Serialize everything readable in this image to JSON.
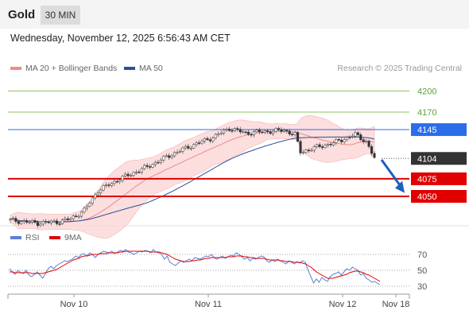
{
  "header": {
    "title": "Gold",
    "interval": "30 MIN"
  },
  "timestamp": "Wednesday, November 12, 2025 6:56:43 AM CET",
  "legend": [
    {
      "label": "MA 20 + Bollinger Bands",
      "color": "#f08a8a"
    },
    {
      "label": "MA 50",
      "color": "#2a4f9a"
    }
  ],
  "credit": "Research © 2025 Trading Central",
  "rsi_legend": [
    {
      "label": "RSI",
      "color": "#5a7fd6"
    },
    {
      "label": "9MA",
      "color": "#e00000"
    }
  ],
  "chart_data": {
    "type": "candlestick",
    "price_axis": {
      "min": 4007,
      "max": 4222
    },
    "levels": [
      {
        "value": 4200,
        "label": "4200",
        "kind": "target",
        "color": "#8cc464"
      },
      {
        "value": 4170,
        "label": "4170",
        "kind": "target",
        "color": "#8cc464"
      },
      {
        "value": 4145,
        "label": "4145",
        "kind": "pivot",
        "color": "#2a6dea"
      },
      {
        "value": 4104,
        "label": "4104",
        "kind": "last",
        "color": "#333333"
      },
      {
        "value": 4075,
        "label": "4075",
        "kind": "support",
        "color": "#e00000"
      },
      {
        "value": 4050,
        "label": "4050",
        "kind": "support",
        "color": "#e00000"
      }
    ],
    "x_labels": [
      "Nov 10",
      "Nov 11",
      "Nov 12",
      "Nov 18"
    ],
    "rsi": {
      "axis": {
        "min": 22,
        "max": 78
      },
      "ticks": [
        70,
        50,
        30
      ],
      "rsi_values": [
        52,
        48,
        45,
        50,
        47,
        46,
        50,
        44,
        42,
        45,
        48,
        44,
        40,
        46,
        52,
        55,
        52,
        56,
        58,
        60,
        62,
        61,
        63,
        65,
        68,
        66,
        70,
        71,
        68,
        72,
        70,
        66,
        70,
        72,
        74,
        73,
        72,
        74,
        71,
        73,
        75,
        74,
        76,
        73,
        72,
        70,
        72,
        74,
        73,
        75,
        74,
        72,
        76,
        73,
        72,
        70,
        64,
        68,
        60,
        58,
        56,
        59,
        62,
        60,
        62,
        64,
        62,
        66,
        65,
        64,
        66,
        68,
        67,
        70,
        66,
        64,
        66,
        68,
        65,
        67,
        69,
        68,
        72,
        70,
        67,
        64,
        66,
        62,
        65,
        64,
        66,
        68,
        67,
        62,
        60,
        63,
        61,
        64,
        62,
        60,
        58,
        62,
        60,
        58,
        61,
        59,
        62,
        60,
        50,
        42,
        34,
        39,
        35,
        41,
        38,
        36,
        42,
        45,
        46,
        48,
        44,
        48,
        52,
        50,
        54,
        52,
        50,
        44,
        46,
        40,
        38,
        35,
        36,
        34,
        32
      ],
      "ma9_values": [
        48,
        48,
        47,
        47,
        47,
        47,
        47,
        47,
        46,
        46,
        46,
        46,
        46,
        47,
        48,
        49,
        50,
        51,
        53,
        55,
        57,
        59,
        61,
        63,
        64,
        65,
        67,
        68,
        68,
        69,
        70,
        70,
        70,
        71,
        71,
        71,
        72,
        72,
        72,
        72,
        73,
        73,
        74,
        74,
        74,
        74,
        74,
        74,
        74,
        74,
        74,
        73,
        73,
        73,
        73,
        72,
        71,
        70,
        68,
        66,
        64,
        63,
        62,
        61,
        61,
        61,
        62,
        62,
        63,
        63,
        64,
        65,
        65,
        66,
        66,
        66,
        66,
        66,
        66,
        67,
        67,
        67,
        68,
        68,
        68,
        67,
        67,
        66,
        66,
        65,
        65,
        65,
        65,
        64,
        63,
        63,
        63,
        63,
        62,
        62,
        61,
        61,
        61,
        60,
        60,
        60,
        59,
        58,
        56,
        54,
        51,
        48,
        46,
        44,
        42,
        40,
        40,
        40,
        41,
        42,
        43,
        44,
        45,
        47,
        48,
        49,
        49,
        48,
        47,
        45,
        44,
        42,
        40,
        38,
        36
      ]
    },
    "annotation": "forecast arrow down"
  }
}
